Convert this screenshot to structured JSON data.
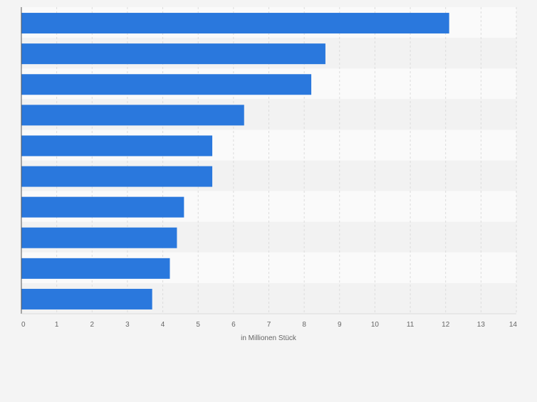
{
  "chart_data": {
    "type": "bar",
    "orientation": "horizontal",
    "title": "",
    "xlabel": "in Millionen Stück",
    "ylabel": "",
    "categories": [
      "",
      "",
      "",
      "",
      "",
      "",
      "",
      "",
      "",
      ""
    ],
    "values": [
      12.1,
      8.6,
      8.2,
      6.3,
      5.4,
      5.4,
      4.6,
      4.4,
      4.2,
      3.7
    ],
    "xlim": [
      0,
      14
    ],
    "xticks": [
      "0",
      "1",
      "2",
      "3",
      "4",
      "5",
      "6",
      "7",
      "8",
      "9",
      "10",
      "11",
      "12",
      "13",
      "14"
    ],
    "grid": true,
    "colors": {
      "bar": "#2a78dd",
      "page_background": "#f4f4f4",
      "band_light": "#fafafa",
      "band_dark": "#f2f2f2",
      "grid": "#dcdcdc",
      "axis": "#555555",
      "tick_label": "#666666"
    }
  }
}
